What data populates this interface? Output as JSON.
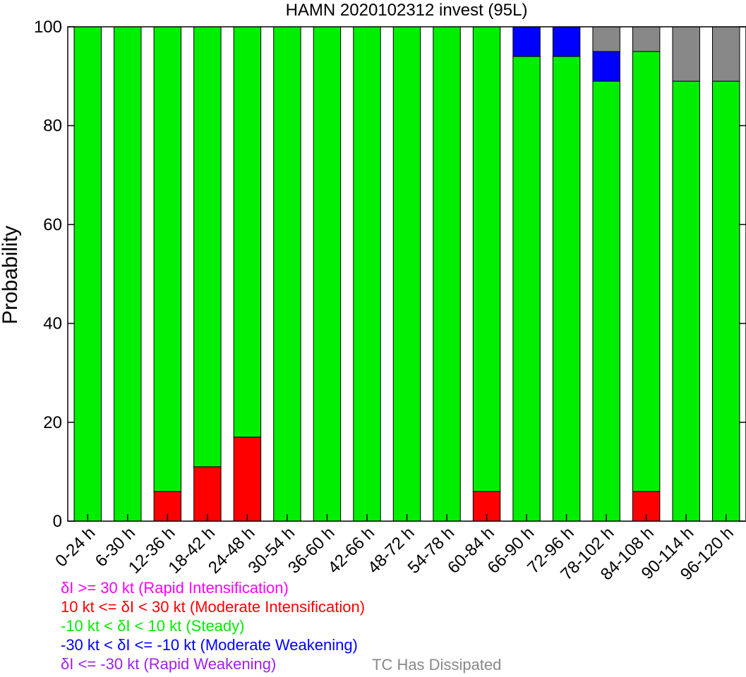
{
  "chart_data": {
    "type": "bar",
    "stacked": true,
    "title": "HAMN 2020102312 invest (95L)",
    "ylabel": "Probability",
    "xlabel": "",
    "ylim": [
      0,
      100
    ],
    "yticks": [
      0,
      20,
      40,
      60,
      80,
      100
    ],
    "grid": false,
    "legend_position": "bottom-left",
    "categories": [
      "0-24 h",
      "6-30 h",
      "12-36 h",
      "18-42 h",
      "24-48 h",
      "30-54 h",
      "36-60 h",
      "42-66 h",
      "48-72 h",
      "54-78 h",
      "60-84 h",
      "66-90 h",
      "72-96 h",
      "78-102 h",
      "84-108 h",
      "90-114 h",
      "96-120 h"
    ],
    "series": [
      {
        "name": "Rapid Intensification",
        "color": "#ff00ff",
        "values": [
          0,
          0,
          0,
          0,
          0,
          0,
          0,
          0,
          0,
          0,
          0,
          0,
          0,
          0,
          0,
          0,
          0
        ]
      },
      {
        "name": "Moderate Intensification",
        "color": "#ff0000",
        "values": [
          0,
          0,
          6,
          11,
          17,
          0,
          0,
          0,
          0,
          0,
          6,
          0,
          0,
          0,
          6,
          0,
          0
        ]
      },
      {
        "name": "Steady",
        "color": "#00ee00",
        "values": [
          100,
          100,
          94,
          89,
          83,
          100,
          100,
          100,
          100,
          100,
          94,
          94,
          94,
          89,
          89,
          89,
          89
        ]
      },
      {
        "name": "Moderate Weakening",
        "color": "#0000ff",
        "values": [
          0,
          0,
          0,
          0,
          0,
          0,
          0,
          0,
          0,
          0,
          0,
          6,
          6,
          6,
          0,
          0,
          0
        ]
      },
      {
        "name": "Rapid Weakening",
        "color": "#a020f0",
        "values": [
          0,
          0,
          0,
          0,
          0,
          0,
          0,
          0,
          0,
          0,
          0,
          0,
          0,
          0,
          0,
          0,
          0
        ]
      },
      {
        "name": "TC Has Dissipated",
        "color": "#888888",
        "values": [
          0,
          0,
          0,
          0,
          0,
          0,
          0,
          0,
          0,
          0,
          0,
          0,
          0,
          5,
          5,
          11,
          11
        ]
      }
    ]
  },
  "legend": {
    "items": [
      {
        "text": "δI >= 30 kt (Rapid Intensification)",
        "color": "#ff00ff"
      },
      {
        "text": "10 kt <= δI < 30 kt (Moderate Intensification)",
        "color": "#ff0000"
      },
      {
        "text": "-10 kt < δI < 10 kt (Steady)",
        "color": "#00ee00"
      },
      {
        "text": "-30 kt < δI <= -10 kt (Moderate Weakening)",
        "color": "#0000ff"
      },
      {
        "text": "δI <= -30 kt (Rapid Weakening)",
        "color": "#a020f0"
      }
    ],
    "extra": {
      "text": "TC Has Dissipated",
      "color": "#888888"
    }
  }
}
